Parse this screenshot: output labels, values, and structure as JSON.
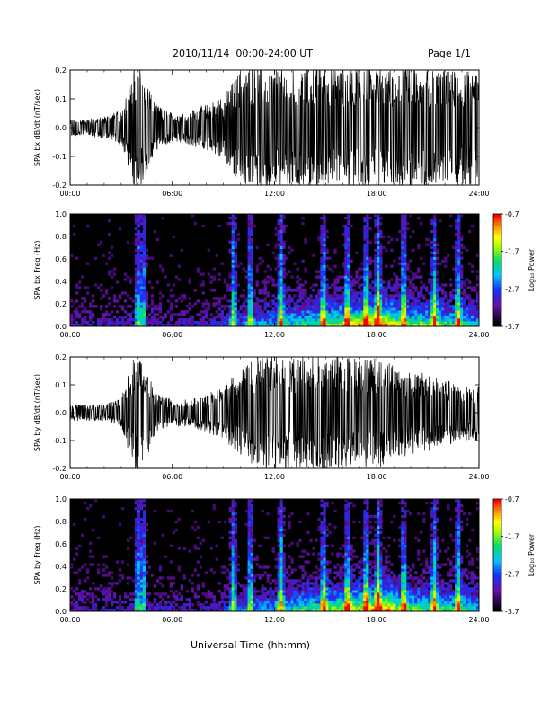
{
  "header": {
    "title": "2010/11/14  00:00-24:00 UT",
    "page": "Page 1/1"
  },
  "colors": {
    "trace": "#000000",
    "background": "#ffffff",
    "colormap": [
      "#000000",
      "#6a0fb0",
      "#1030ff",
      "#00d0ff",
      "#00e070",
      "#a0ff00",
      "#ffff00",
      "#ff8000",
      "#ff0000"
    ]
  },
  "chart_data": [
    {
      "type": "line",
      "ylabel": "SPA bx dB/dt (nT/sec)",
      "xlabel": "Universal Time (hh:mm)",
      "xlim": [
        0,
        24
      ],
      "ylim": [
        -0.2,
        0.2
      ],
      "x_tick_labels": [
        "00:00",
        "06:00",
        "12:00",
        "18:00",
        "24:00"
      ],
      "y_ticks": [
        -0.2,
        -0.1,
        0.0,
        0.1,
        0.2
      ],
      "y_tick_labels": [
        "-0.2",
        "-0.1",
        "0.0",
        "0.1",
        "0.2"
      ],
      "series": [
        {
          "x": [
            0,
            1,
            2,
            3,
            3.8,
            4.3,
            5,
            6,
            7,
            8,
            9,
            10,
            11,
            12,
            13,
            14,
            15,
            16,
            17,
            18,
            19,
            20,
            21,
            22,
            23,
            24
          ],
          "envelope": [
            0.03,
            0.03,
            0.04,
            0.06,
            0.22,
            0.2,
            0.08,
            0.05,
            0.06,
            0.08,
            0.11,
            0.2,
            0.22,
            0.2,
            0.2,
            0.22,
            0.22,
            0.2,
            0.22,
            0.22,
            0.2,
            0.22,
            0.2,
            0.2,
            0.2,
            0.2
          ]
        }
      ]
    },
    {
      "type": "heatmap",
      "ylabel": "SPA bx Freq (Hz)",
      "xlim": [
        0,
        24
      ],
      "ylim": [
        0,
        1.0
      ],
      "x_tick_labels": [
        "00:00",
        "06:00",
        "12:00",
        "18:00",
        "24:00"
      ],
      "y_ticks": [
        0.0,
        0.2,
        0.4,
        0.6,
        0.8,
        1.0
      ],
      "y_tick_labels": [
        "0.0",
        "0.2",
        "0.4",
        "0.6",
        "0.8",
        "1.0"
      ],
      "colorbar": {
        "label": "Log₁₀ Power",
        "range": [
          -3.7,
          -0.7
        ],
        "tick_labels": [
          "-0.7",
          "-1.7",
          "-2.7",
          "-3.7"
        ]
      },
      "bursts_hr": [
        3.9,
        4.2,
        9.5,
        10.5,
        12.3,
        14.8,
        16.2,
        17.3,
        18.0,
        19.5,
        21.3,
        22.7
      ]
    },
    {
      "type": "line",
      "ylabel": "SPA by dB/dt (nT/sec)",
      "xlim": [
        0,
        24
      ],
      "ylim": [
        -0.2,
        0.2
      ],
      "x_tick_labels": [
        "00:00",
        "06:00",
        "12:00",
        "18:00",
        "24:00"
      ],
      "y_ticks": [
        -0.2,
        -0.1,
        0.0,
        0.1,
        0.2
      ],
      "y_tick_labels": [
        "-0.2",
        "-0.1",
        "0.0",
        "0.1",
        "0.2"
      ],
      "series": [
        {
          "x": [
            0,
            1,
            2,
            3,
            3.8,
            4.3,
            5,
            6,
            7,
            8,
            9,
            10,
            11,
            12,
            13,
            14,
            15,
            16,
            17,
            18,
            19,
            20,
            21,
            22,
            23,
            24
          ],
          "envelope": [
            0.03,
            0.03,
            0.03,
            0.05,
            0.22,
            0.2,
            0.07,
            0.05,
            0.05,
            0.07,
            0.1,
            0.15,
            0.2,
            0.22,
            0.2,
            0.2,
            0.22,
            0.2,
            0.2,
            0.2,
            0.18,
            0.15,
            0.14,
            0.12,
            0.1,
            0.1
          ]
        }
      ]
    },
    {
      "type": "heatmap",
      "ylabel": "SPA by Freq (Hz)",
      "xlim": [
        0,
        24
      ],
      "ylim": [
        0,
        1.0
      ],
      "x_tick_labels": [
        "00:00",
        "06:00",
        "12:00",
        "18:00",
        "24:00"
      ],
      "y_ticks": [
        0.0,
        0.2,
        0.4,
        0.6,
        0.8,
        1.0
      ],
      "y_tick_labels": [
        "0.0",
        "0.2",
        "0.4",
        "0.6",
        "0.8",
        "1.0"
      ],
      "colorbar": {
        "label": "Log₁₀ Power",
        "range": [
          -3.7,
          -0.7
        ],
        "tick_labels": [
          "-0.7",
          "-1.7",
          "-2.7",
          "-3.7"
        ]
      },
      "bursts_hr": [
        3.9,
        4.2,
        9.5,
        10.5,
        12.3,
        14.8,
        16.2,
        17.3,
        18.0,
        19.5,
        21.3,
        22.7
      ]
    }
  ]
}
